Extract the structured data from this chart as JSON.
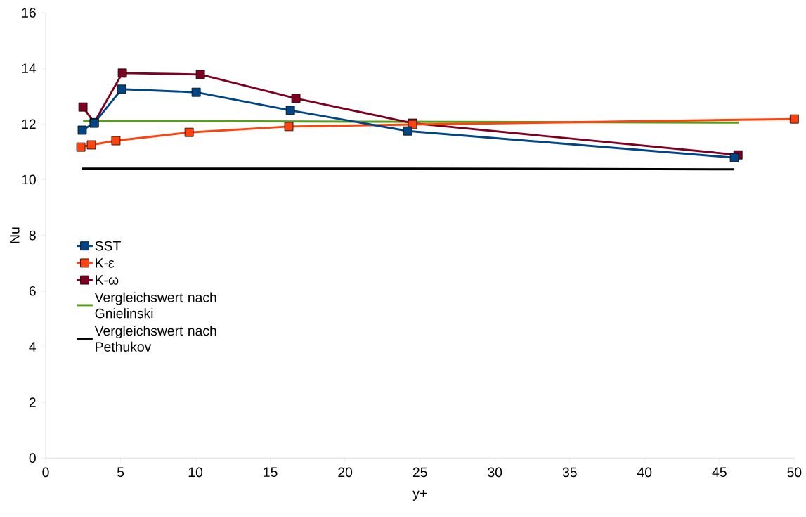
{
  "chart_data": {
    "type": "line",
    "xlabel": "y+",
    "ylabel": "Nu",
    "xlim": [
      0,
      50
    ],
    "ylim": [
      0,
      16
    ],
    "xticks": [
      0,
      5,
      10,
      15,
      20,
      25,
      30,
      35,
      40,
      45,
      50
    ],
    "yticks": [
      0,
      2,
      4,
      6,
      8,
      10,
      12,
      14,
      16
    ],
    "grid": false,
    "legend": "left",
    "line_style": "solid",
    "series": [
      {
        "name": "SST",
        "color": "#004586",
        "marker": "square",
        "x": [
          2.44,
          3.24,
          5.07,
          10.05,
          16.34,
          24.18,
          46.0
        ],
        "values": [
          11.78,
          12.03,
          13.25,
          13.14,
          12.49,
          11.75,
          10.79
        ]
      },
      {
        "name": "K-ε",
        "color": "#ff420e",
        "marker": "square",
        "x": [
          2.35,
          3.05,
          4.69,
          9.58,
          16.24,
          24.5,
          50
        ],
        "values": [
          11.17,
          11.25,
          11.4,
          11.7,
          11.91,
          11.98,
          12.18
        ]
      },
      {
        "name": "K-ω",
        "color": "#7e0021",
        "marker": "square",
        "x": [
          2.49,
          3.24,
          5.12,
          10.33,
          16.71,
          24.5,
          46.24
        ],
        "values": [
          12.61,
          12.05,
          13.83,
          13.78,
          12.92,
          12.03,
          10.89
        ]
      },
      {
        "name": "Vergleichswert nach Gnielinski",
        "color": "#579d1c",
        "marker": "none",
        "x": [
          2.5,
          10.3,
          46.3
        ],
        "values": [
          12.1,
          12.1,
          12.05
        ]
      },
      {
        "name": "Vergleichswert nach Pethukov",
        "color": "#000000",
        "marker": "none",
        "x": [
          2.44,
          24.2,
          46.0
        ],
        "values": [
          10.4,
          10.4,
          10.37
        ]
      }
    ]
  }
}
